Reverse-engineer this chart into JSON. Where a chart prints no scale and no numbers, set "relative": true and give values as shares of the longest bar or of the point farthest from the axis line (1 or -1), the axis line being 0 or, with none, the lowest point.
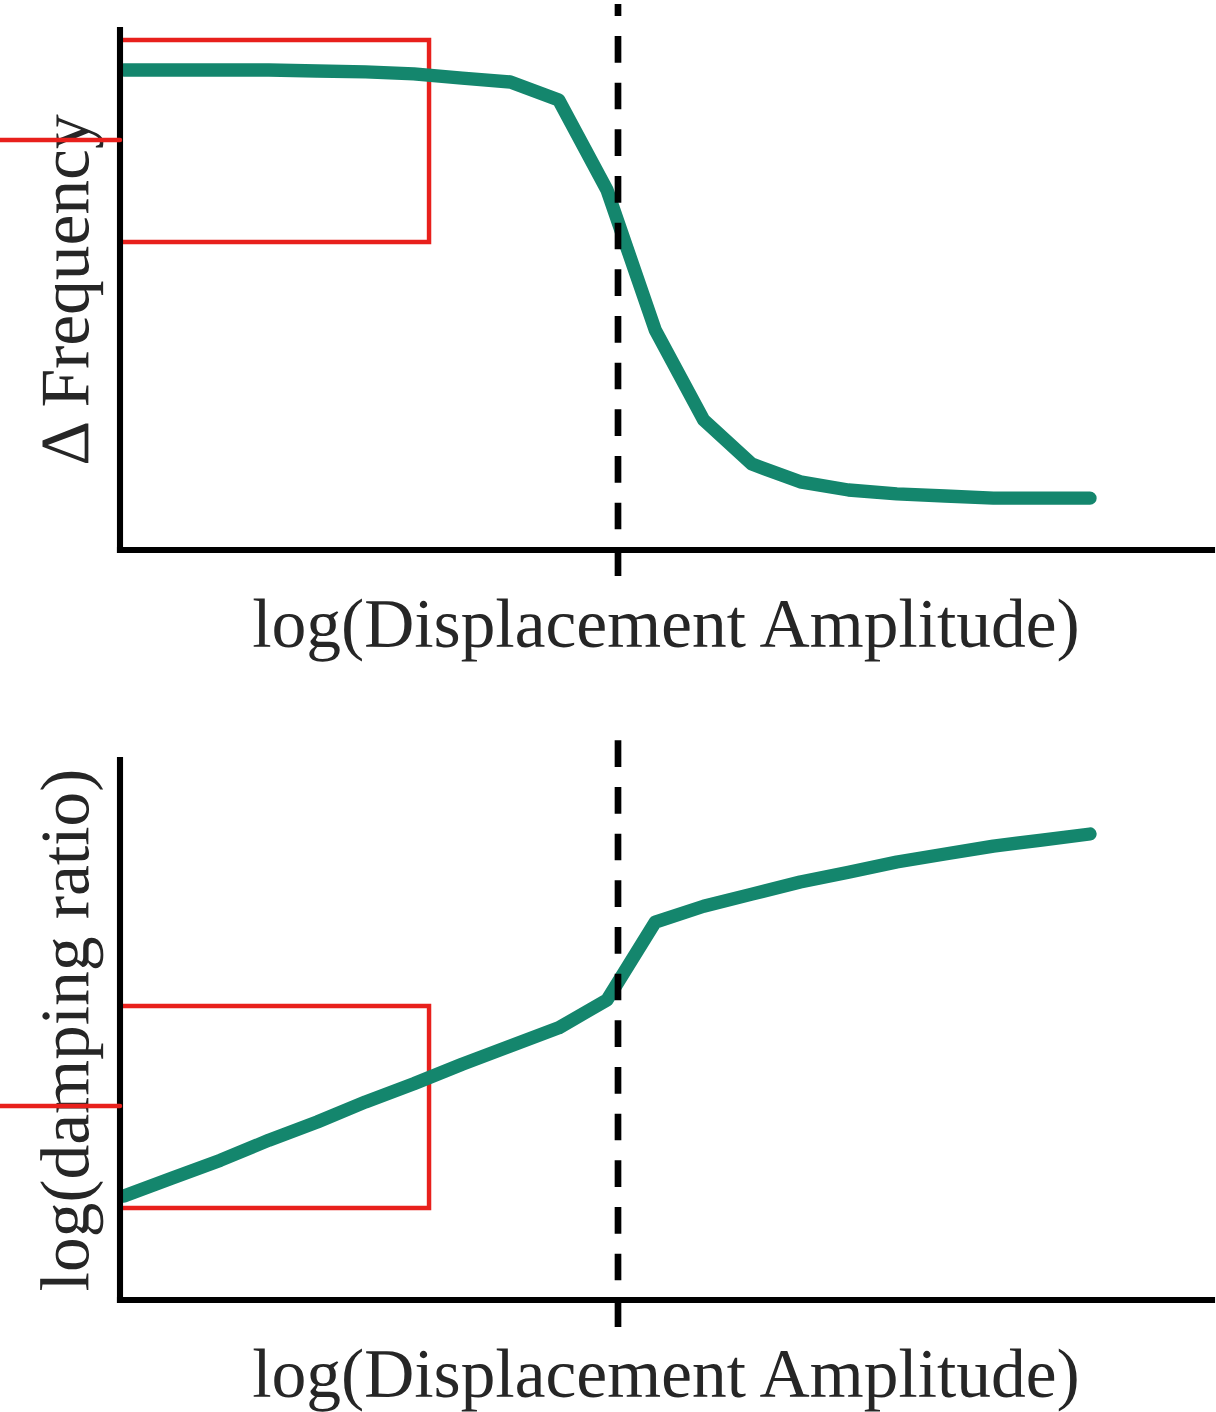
{
  "chart_data": [
    {
      "type": "line",
      "xlabel": "log(Displacement Amplitude)",
      "ylabel": "Δ Frequency",
      "relative": true,
      "categories": [
        null,
        null,
        null,
        null,
        null,
        null,
        null,
        null,
        null,
        null,
        null,
        null,
        null,
        null,
        null,
        null,
        null,
        null,
        null,
        null,
        null
      ],
      "series": [
        {
          "color": "#14866d",
          "values": [
            1,
            1,
            1,
            1,
            0.998,
            0.996,
            0.992,
            0.983,
            0.975,
            0.9375,
            0.75,
            0.458,
            0.271,
            0.179,
            0.142,
            0.125,
            0.117,
            0.1125,
            0.108,
            0.108,
            0.108
          ]
        }
      ],
      "marker": "none",
      "line_style": "solid",
      "grid": false,
      "legend": false
    },
    {
      "type": "line",
      "xlabel": "log(Displacement Amplitude)",
      "ylabel": "log(damping ratio)",
      "relative": true,
      "categories": [
        null,
        null,
        null,
        null,
        null,
        null,
        null,
        null,
        null,
        null,
        null,
        null,
        null,
        null,
        null,
        null,
        null,
        null,
        null,
        null,
        null
      ],
      "series": [
        {
          "color": "#14866d",
          "values": [
            0.223,
            0.262,
            0.3,
            0.343,
            0.382,
            0.425,
            0.464,
            0.506,
            0.545,
            0.584,
            0.644,
            0.811,
            0.845,
            0.871,
            0.897,
            0.918,
            0.94,
            0.957,
            0.974,
            0.987,
            1
          ]
        }
      ],
      "marker": "none",
      "line_style": "solid",
      "grid": false,
      "legend": false
    }
  ]
}
